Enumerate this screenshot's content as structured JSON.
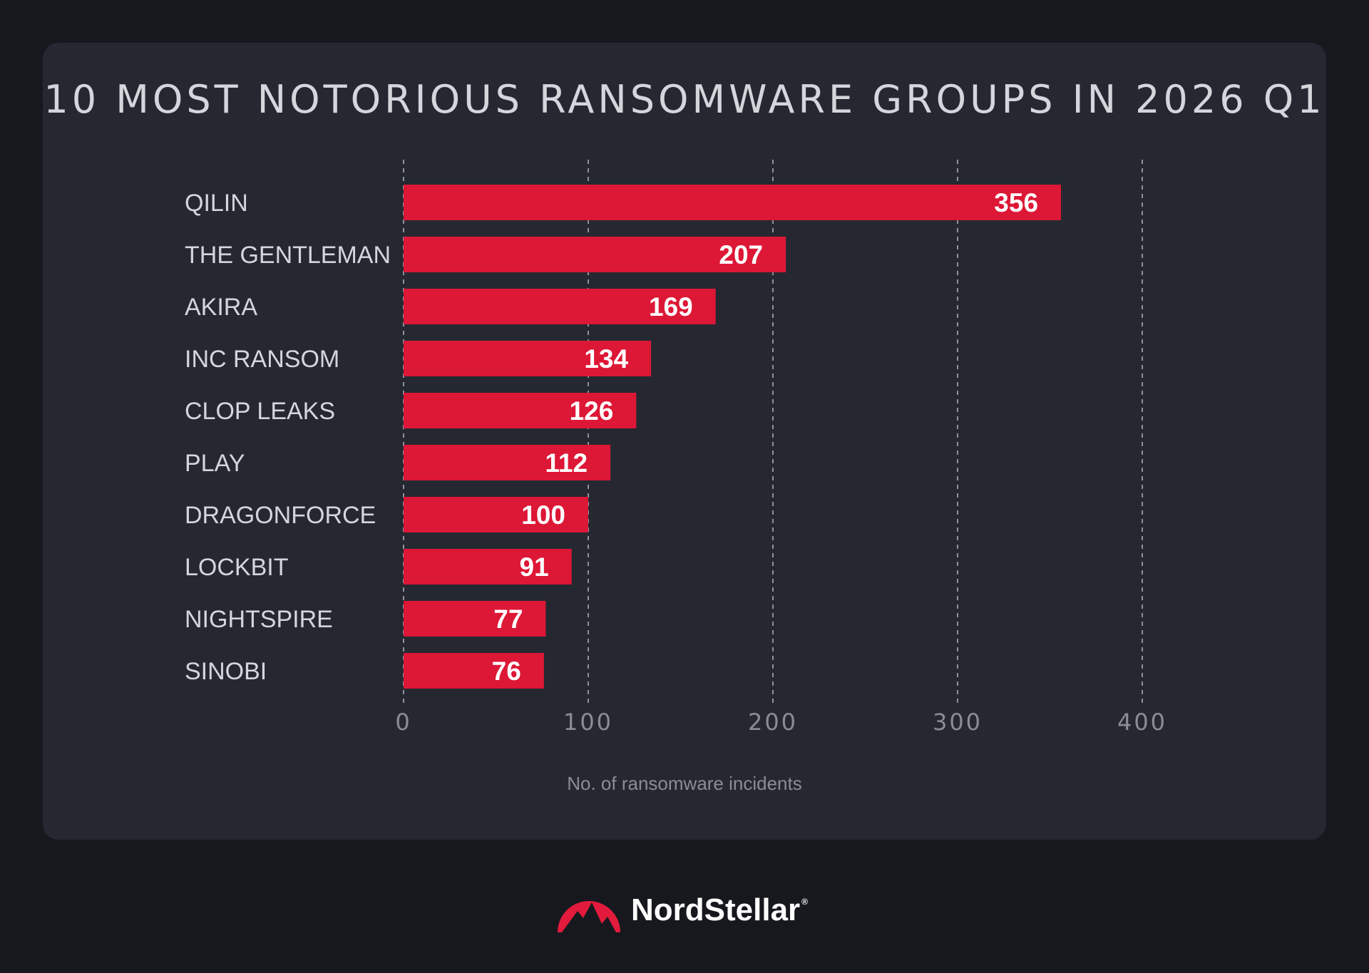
{
  "chart_data": {
    "type": "bar",
    "orientation": "horizontal",
    "title": "10 MOST NOTORIOUS RANSOMWARE GROUPS IN 2026 Q1",
    "xlabel": "No. of ransomware incidents",
    "categories": [
      "QILIN",
      "THE GENTLEMAN",
      "AKIRA",
      "INC RANSOM",
      "CLOP LEAKS",
      "PLAY",
      "DRAGONFORCE",
      "LOCKBIT",
      "NIGHTSPIRE",
      "SINOBI"
    ],
    "values": [
      356,
      207,
      169,
      134,
      126,
      112,
      100,
      91,
      77,
      76
    ],
    "xlim": [
      0,
      400
    ],
    "xticks": [
      0,
      100,
      200,
      300,
      400
    ],
    "grid": "vertical dashed",
    "bar_color": "#dd1736",
    "data_labels": "inside-end"
  },
  "brand": {
    "name": "NordStellar",
    "registered_mark": "®",
    "logo_icon": "mountain-badge-icon",
    "logo_color": "#e21b3c"
  },
  "colors": {
    "page_background": "#16181e",
    "card_background": "#252831",
    "text": "#d4d6dc",
    "muted_text": "#8a8d96",
    "grid": "#8f929b"
  }
}
